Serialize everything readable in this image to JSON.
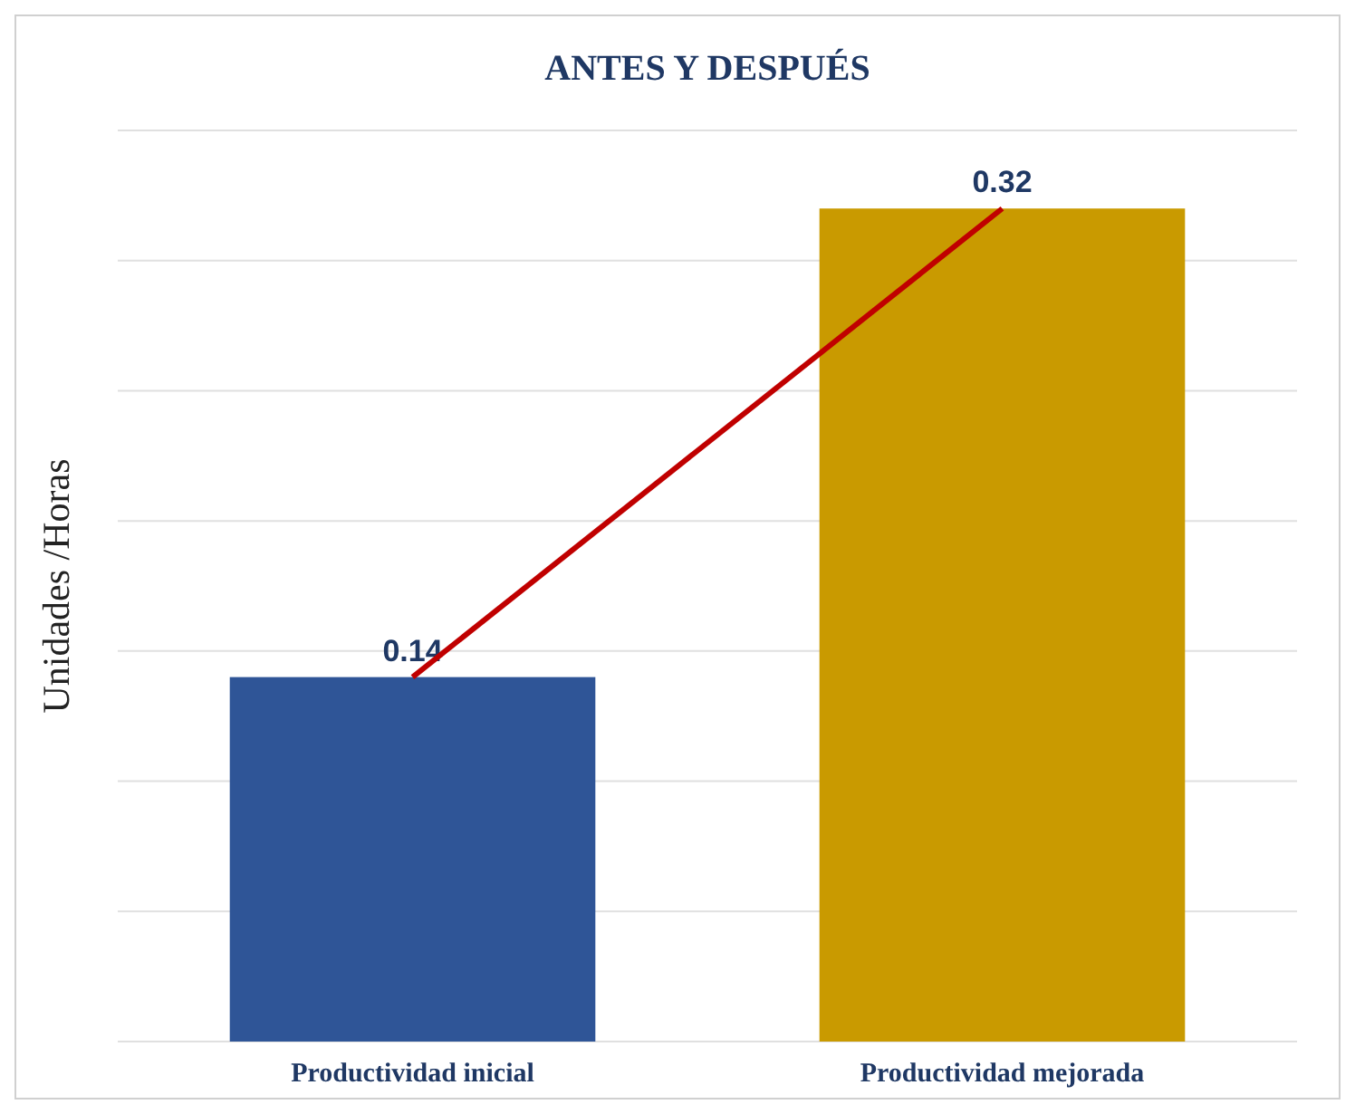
{
  "chart_data": {
    "type": "bar",
    "title": "ANTES Y DESPUÉS",
    "ylabel": "Unidades /Horas",
    "categories": [
      "Productividad inicial",
      "Productividad mejorada"
    ],
    "series": [
      {
        "colors": [
          "#2f5597",
          "#c99a00"
        ],
        "values": [
          0.14,
          0.32
        ],
        "value_labels": [
          "0.14",
          "0.32"
        ]
      },
      {
        "type": "line",
        "color": "#c00000",
        "values": [
          0.14,
          0.32
        ]
      }
    ],
    "ylim": [
      0,
      0.35
    ],
    "yticks": [
      {
        "value": 0,
        "label": null
      },
      {
        "value": 0.05,
        "label": null
      },
      {
        "value": 0.1,
        "label": null
      },
      {
        "value": 0.15,
        "label": null
      },
      {
        "value": 0.2,
        "label": null
      },
      {
        "value": 0.25,
        "label": null
      },
      {
        "value": 0.3,
        "label": null
      },
      {
        "value": 0.35,
        "label": null
      }
    ],
    "grid": "y",
    "marker": "none"
  }
}
